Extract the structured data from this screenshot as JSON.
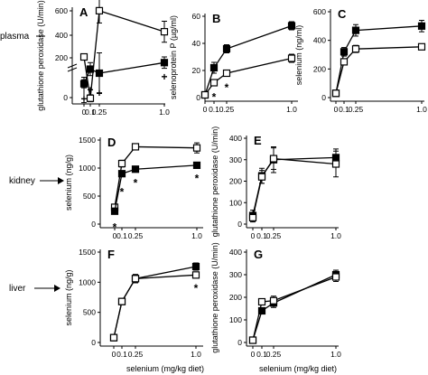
{
  "figure": {
    "row_labels": [
      "plasma",
      "kidney",
      "liver"
    ],
    "shared_xlabel": "selenium (mg/kg diet)"
  },
  "chart_data": [
    {
      "panel": "A",
      "type": "line",
      "ylabel": "glutathione peroxidase (U/min)",
      "y_broken_axis": true,
      "x": [
        0,
        0.1,
        0.25,
        1.0
      ],
      "xticks": [
        "0",
        "0.1",
        "0.25",
        "1.0"
      ],
      "yticks": [
        "0",
        "200",
        "400",
        "600"
      ],
      "series": [
        {
          "marker": "open",
          "values": [
            50,
            100,
            600,
            480
          ],
          "err": [
            25,
            20,
            70,
            60
          ]
        },
        {
          "marker": "filled",
          "values": [
            17,
            35,
            30,
            43
          ],
          "err": [
            5,
            8,
            25,
            7
          ]
        }
      ],
      "annotations": [
        {
          "text": "+",
          "x": 0,
          "y": 3
        },
        {
          "text": "+",
          "x": 0.1,
          "y": 14
        },
        {
          "text": "+",
          "x": 0.25,
          "y": 10
        },
        {
          "text": "+",
          "x": 1.0,
          "y": 30
        }
      ]
    },
    {
      "panel": "B",
      "type": "line",
      "ylabel": "selenoprotein P (µg/ml)",
      "x": [
        0,
        0.1,
        0.25,
        1.0
      ],
      "xticks": [
        "0",
        "0.1",
        "0.25",
        "1.0"
      ],
      "ylim": [
        0,
        60
      ],
      "yticks": [
        "0",
        "20",
        "40",
        "60"
      ],
      "series": [
        {
          "marker": "filled",
          "values": [
            2,
            22,
            36,
            53
          ],
          "err": [
            1,
            4,
            3,
            3
          ]
        },
        {
          "marker": "open",
          "values": [
            2,
            11,
            18,
            29
          ],
          "err": [
            1,
            2,
            2,
            3
          ]
        }
      ],
      "annotations": [
        {
          "text": "*",
          "x": 0.1,
          "y": 3
        },
        {
          "text": "*",
          "x": 0.25,
          "y": 10
        }
      ]
    },
    {
      "panel": "C",
      "type": "line",
      "ylabel": "selenium (ng/ml)",
      "x": [
        0,
        0.1,
        0.25,
        1.0
      ],
      "xticks": [
        "0",
        "0.1",
        "0.25",
        "1.0"
      ],
      "ylim": [
        0,
        600
      ],
      "yticks": [
        "0",
        "200",
        "400",
        "600"
      ],
      "series": [
        {
          "marker": "filled",
          "values": [
            30,
            320,
            470,
            500
          ],
          "err": [
            15,
            30,
            40,
            40
          ]
        },
        {
          "marker": "open",
          "values": [
            30,
            250,
            340,
            355
          ],
          "err": [
            15,
            20,
            25,
            20
          ]
        }
      ]
    },
    {
      "panel": "D",
      "type": "line",
      "ylabel": "selenium (ng/g)",
      "x": [
        0,
        0.1,
        0.25,
        1.0
      ],
      "xticks": [
        "0",
        "0.1",
        "0.25",
        "1.0"
      ],
      "ylim": [
        0,
        1500
      ],
      "yticks": [
        "0",
        "500",
        "1000",
        "1500"
      ],
      "series": [
        {
          "marker": "open",
          "values": [
            300,
            1080,
            1380,
            1360
          ],
          "err": [
            40,
            60,
            40,
            90
          ]
        },
        {
          "marker": "filled",
          "values": [
            230,
            900,
            980,
            1050
          ],
          "err": [
            30,
            40,
            30,
            30
          ]
        }
      ],
      "annotations": [
        {
          "text": "*",
          "x": 0,
          "y": 10
        },
        {
          "text": "*",
          "x": 0.1,
          "y": 640
        },
        {
          "text": "*",
          "x": 0.25,
          "y": 800
        },
        {
          "text": "*",
          "x": 1.0,
          "y": 880
        }
      ]
    },
    {
      "panel": "E",
      "type": "line",
      "ylabel": "glutathione peroxidase (U/min)",
      "x": [
        0,
        0.1,
        0.25,
        1.0
      ],
      "xticks": [
        "0",
        "0.1",
        "0.25",
        "1.0"
      ],
      "ylim": [
        0,
        400
      ],
      "yticks": [
        "0",
        "100",
        "200",
        "300",
        "400"
      ],
      "series": [
        {
          "marker": "filled",
          "values": [
            40,
            225,
            300,
            310
          ],
          "err": [
            25,
            35,
            60,
            40
          ]
        },
        {
          "marker": "open",
          "values": [
            30,
            220,
            305,
            280
          ],
          "err": [
            20,
            30,
            50,
            60
          ]
        }
      ]
    },
    {
      "panel": "F",
      "type": "line",
      "ylabel": "selenium (ng/g)",
      "x": [
        0,
        0.1,
        0.25,
        1.0
      ],
      "xticks": [
        "0",
        "0.1",
        "0.25",
        "1.0"
      ],
      "ylim": [
        0,
        1500
      ],
      "yticks": [
        "0",
        "500",
        "1000",
        "1500"
      ],
      "series": [
        {
          "marker": "filled",
          "values": [
            80,
            680,
            1060,
            1260
          ],
          "err": [
            20,
            40,
            70,
            60
          ]
        },
        {
          "marker": "open",
          "values": [
            80,
            680,
            1060,
            1120
          ],
          "err": [
            20,
            40,
            60,
            50
          ]
        }
      ],
      "annotations": [
        {
          "text": "*",
          "x": 1.0,
          "y": 960
        }
      ]
    },
    {
      "panel": "G",
      "type": "line",
      "ylabel": "glutathione peroxidase (U/min)",
      "x": [
        0,
        0.1,
        0.25,
        1.0
      ],
      "xticks": [
        "0",
        "0.1",
        "0.25",
        "1.0"
      ],
      "ylim": [
        0,
        400
      ],
      "yticks": [
        "0",
        "100",
        "200",
        "300",
        "400"
      ],
      "series": [
        {
          "marker": "filled",
          "values": [
            10,
            140,
            175,
            300
          ],
          "err": [
            5,
            10,
            20,
            20
          ]
        },
        {
          "marker": "open",
          "values": [
            10,
            180,
            185,
            290
          ],
          "err": [
            5,
            10,
            20,
            20
          ]
        }
      ]
    }
  ]
}
